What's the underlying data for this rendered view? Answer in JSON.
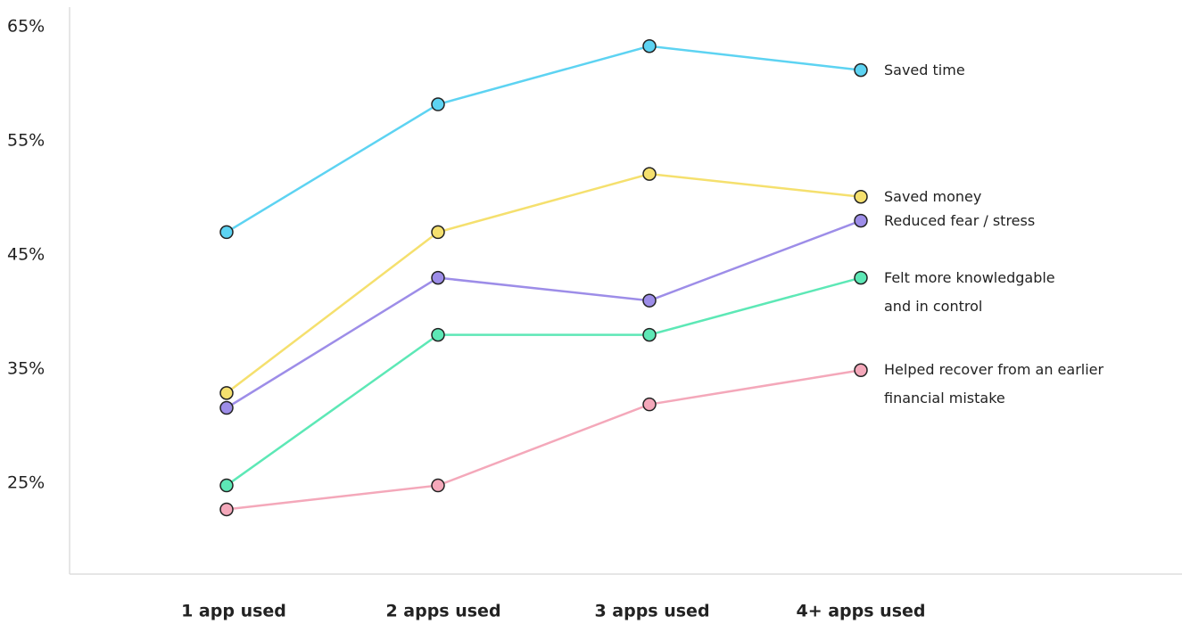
{
  "chart_data": {
    "type": "line",
    "categories": [
      "1 app used",
      "2 apps used",
      "3 apps used",
      "4+ apps used"
    ],
    "series": [
      {
        "name": "Saved time",
        "color": "#5dd3f2",
        "values": [
          47,
          58.2,
          63.3,
          61.2
        ]
      },
      {
        "name": "Saved money",
        "color": "#f5e06e",
        "values": [
          32.9,
          47,
          52.1,
          50.1
        ]
      },
      {
        "name": "Reduced fear / stress",
        "color": "#9d8de8",
        "values": [
          31.6,
          43,
          41,
          48
        ]
      },
      {
        "name": "Felt more knowledgable and in control",
        "color": "#5de8b6",
        "values": [
          24.8,
          38,
          38,
          43
        ]
      },
      {
        "name": "Helped recover from an earlier financial mistake",
        "color": "#f4a8ba",
        "values": [
          22.7,
          24.8,
          31.9,
          34.9
        ]
      }
    ],
    "ylim": [
      17,
      66.5
    ],
    "yticks": [
      {
        "value": 25,
        "label": "25%"
      },
      {
        "value": 35,
        "label": "35%"
      },
      {
        "value": 45,
        "label": "45%"
      },
      {
        "value": 55,
        "label": "55%"
      },
      {
        "value": 65,
        "label": "65%"
      }
    ]
  }
}
